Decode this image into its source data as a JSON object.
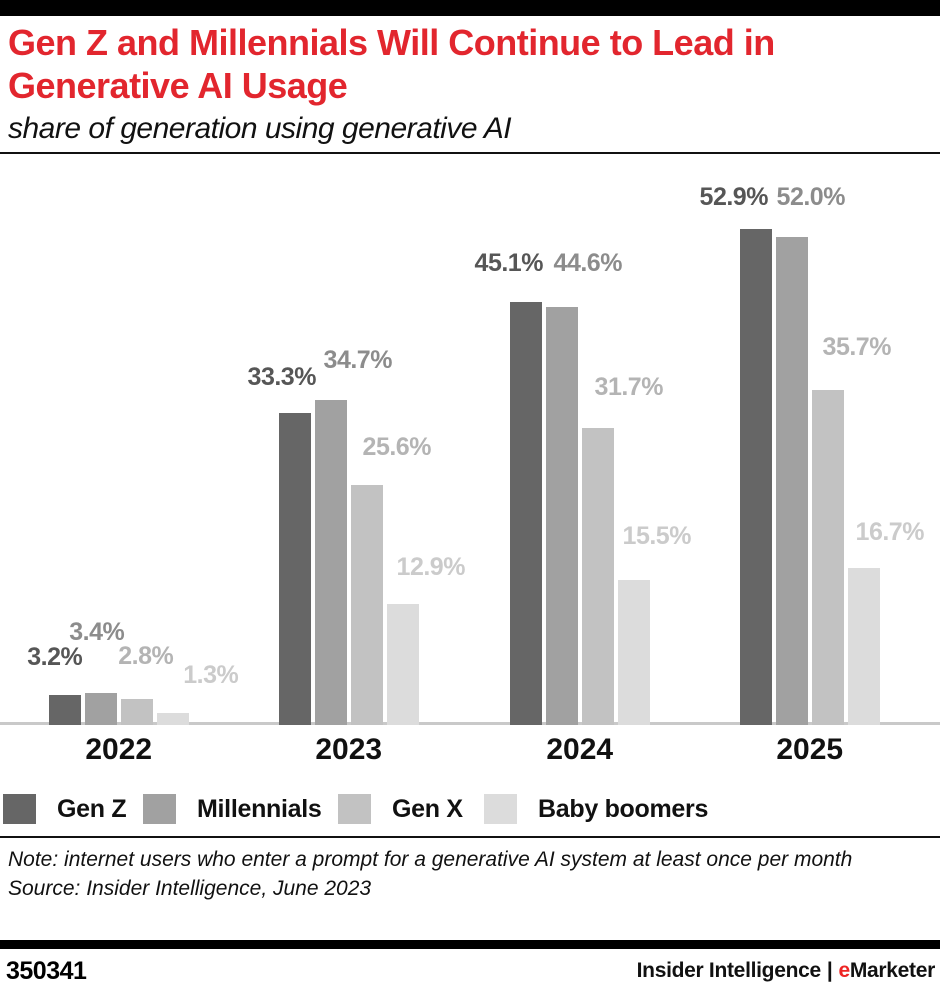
{
  "header": {
    "title_lines": [
      "Gen Z and Millennials Will Continue to Lead in",
      "Generative AI Usage"
    ],
    "subtitle": "share of generation using generative AI"
  },
  "colors": {
    "title_red": "#e2262e",
    "emarketer_red": "#ee2524",
    "axis_line": "#c9c9c9",
    "text_black": "#111111"
  },
  "chart_data": {
    "type": "bar",
    "title": "Gen Z and Millennials Will Continue to Lead in Generative AI Usage",
    "subtitle": "share of generation using generative AI",
    "categories": [
      "2022",
      "2023",
      "2024",
      "2025"
    ],
    "series": [
      {
        "name": "Gen Z",
        "color": "#666666",
        "label_color": "#565656",
        "values": [
          3.2,
          33.3,
          45.1,
          52.9
        ],
        "labels": [
          "3.2%",
          "33.3%",
          "45.1%",
          "52.9%"
        ]
      },
      {
        "name": "Millennials",
        "color": "#a1a1a1",
        "label_color": "#8c8c8c",
        "values": [
          3.4,
          34.7,
          44.6,
          52.0
        ],
        "labels": [
          "3.4%",
          "34.7%",
          "44.6%",
          "52.0%"
        ]
      },
      {
        "name": "Gen X",
        "color": "#c2c2c2",
        "label_color": "#b4b4b4",
        "values": [
          2.8,
          25.6,
          31.7,
          35.7
        ],
        "labels": [
          "2.8%",
          "25.6%",
          "31.7%",
          "35.7%"
        ]
      },
      {
        "name": "Baby boomers",
        "color": "#dcdcdc",
        "label_color": "#cbcbcb",
        "values": [
          1.3,
          12.9,
          15.5,
          16.7
        ],
        "labels": [
          "1.3%",
          "12.9%",
          "15.5%",
          "16.7%"
        ]
      }
    ],
    "value_suffix": "%",
    "ylim": [
      0,
      56
    ],
    "grid": false,
    "legend_position": "bottom",
    "label_layout": [
      [
        [
          -10,
          23
        ],
        [
          -13,
          21
        ],
        [
          -17,
          24
        ],
        [
          -22,
          17
        ]
      ],
      [
        [
          -4,
          46
        ],
        [
          27,
          25
        ],
        [
          26,
          29
        ],
        [
          19,
          25
        ]
      ],
      [
        [
          9,
          28
        ],
        [
          30,
          23
        ],
        [
          31,
          26
        ],
        [
          29,
          28
        ]
      ],
      [
        [
          38,
          23
        ],
        [
          28,
          22
        ],
        [
          23,
          29
        ],
        [
          26,
          21
        ]
      ]
    ]
  },
  "footnote": {
    "note": "Note: internet users who enter a prompt for a generative AI system at least once per month",
    "source": "Source: Insider Intelligence, June 2023"
  },
  "footer": {
    "chart_id": "350341",
    "brand_left": "Insider Intelligence",
    "separator": "|",
    "brand_e": "e",
    "brand_rest": "Marketer"
  }
}
